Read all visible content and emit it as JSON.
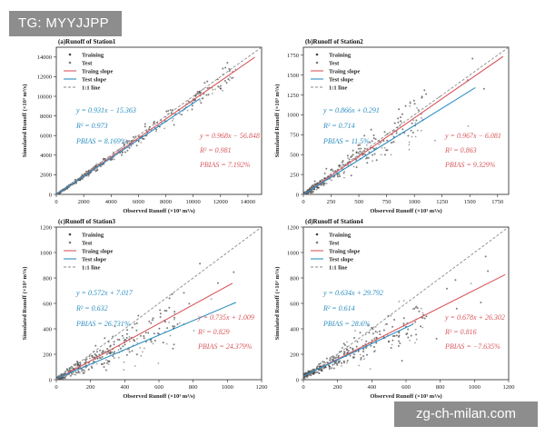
{
  "watermark_top": "TG: MYYJJPP",
  "watermark_bottom": "zg-ch-milan.com",
  "colors": {
    "training": "#d9585e",
    "test": "#2e8fc2",
    "one_to_one": "#8a8a8a",
    "points": "#444444"
  },
  "chart_data": [
    {
      "type": "scatter",
      "title": "(a)Runoff of Station1",
      "xlabel": "Observed Runoff (×10³ m³/s)",
      "ylabel": "Simulated Runoff (×10³ m³/s)",
      "xlim": [
        0,
        15000
      ],
      "ylim": [
        0,
        15000
      ],
      "xticks": [
        0,
        2000,
        4000,
        6000,
        8000,
        10000,
        12000,
        14000
      ],
      "yticks": [
        0,
        2000,
        4000,
        6000,
        8000,
        10000,
        12000,
        14000
      ],
      "legend": [
        "Training",
        "Test",
        "Traing slope",
        "Test slope",
        "1:1 line"
      ],
      "legend_position": "top-left",
      "train_fit": {
        "slope": 0.968,
        "intercept": -56.848,
        "xmax": 14500
      },
      "test_fit": {
        "slope": 0.931,
        "intercept": -15.363,
        "xmax": 10500
      },
      "test_annot": [
        "y = 0.931x − 15.363",
        "R² = 0.973",
        "PBIAS = 8.169%"
      ],
      "train_annot": [
        "y = 0.968x − 56.848",
        "R² = 0.981",
        "PBIAS = 7.192%"
      ]
    },
    {
      "type": "scatter",
      "title": "(b)Runoff of Station2",
      "xlabel": "Observed Runoff (×10³ m³/s)",
      "ylabel": "Simulated Runoff (×10³ m³/s)",
      "xlim": [
        0,
        1850
      ],
      "ylim": [
        0,
        1850
      ],
      "xticks": [
        0,
        250,
        500,
        750,
        1000,
        1250,
        1500,
        1750
      ],
      "yticks": [
        0,
        250,
        500,
        750,
        1000,
        1250,
        1500,
        1750
      ],
      "legend": [
        "Training",
        "Test",
        "Traing slope",
        "Test slope",
        "1:1 line"
      ],
      "legend_position": "top-left",
      "train_fit": {
        "slope": 0.967,
        "intercept": -6.081,
        "xmax": 1800
      },
      "test_fit": {
        "slope": 0.866,
        "intercept": 0.291,
        "xmax": 1550
      },
      "test_annot": [
        "y = 0.866x + 0.291",
        "R² = 0.714",
        "PBIAS = 11.5%"
      ],
      "train_annot": [
        "y = 0.967x − 6.081",
        "R² = 0.863",
        "PBIAS = 9.329%"
      ]
    },
    {
      "type": "scatter",
      "title": "(c)Runoff of Station3",
      "xlabel": "Observed Runoff (×10³ m³/s)",
      "ylabel": "Simulated Runoff (×10³ m³/s)",
      "xlim": [
        0,
        1200
      ],
      "ylim": [
        0,
        1200
      ],
      "xticks": [
        0,
        200,
        400,
        600,
        800,
        1000,
        1200
      ],
      "yticks": [
        0,
        200,
        400,
        600,
        800,
        1000,
        1200
      ],
      "legend": [
        "Training",
        "Test",
        "Traing slope",
        "Test slope",
        "1:1 line"
      ],
      "legend_position": "top-left",
      "train_fit": {
        "slope": 0.735,
        "intercept": 1.009,
        "xmax": 1030
      },
      "test_fit": {
        "slope": 0.572,
        "intercept": 7.017,
        "xmax": 1050
      },
      "test_annot": [
        "y = 0.572x + 7.017",
        "R² = 0.632",
        "PBIAS = 26.731%"
      ],
      "train_annot": [
        "y = 0.735x + 1.009",
        "R² = 0.829",
        "PBIAS = 24.379%"
      ]
    },
    {
      "type": "scatter",
      "title": "(d)Runoff of Station4",
      "xlabel": "Observed Runoff (×10³ m³/s)",
      "ylabel": "Simulated Runoff (×10³ m³/s)",
      "xlim": [
        0,
        1200
      ],
      "ylim": [
        0,
        1200
      ],
      "xticks": [
        0,
        200,
        400,
        600,
        800,
        1000,
        1200
      ],
      "yticks": [
        0,
        200,
        400,
        600,
        800,
        1000,
        1200
      ],
      "legend": [
        "Training",
        "Test",
        "Traing slope",
        "Test slope",
        "1:1 line"
      ],
      "legend_position": "top-left",
      "train_fit": {
        "slope": 0.678,
        "intercept": 26.302,
        "xmax": 1180
      },
      "test_fit": {
        "slope": 0.634,
        "intercept": 29.792,
        "xmax": 640
      },
      "test_annot": [
        "y = 0.634x + 29.792",
        "R² = 0.614",
        "PBIAS = 28.6%"
      ],
      "train_annot": [
        "y = 0.678x + 26.302",
        "R² = 0.816",
        "PBIAS = −7.635%"
      ]
    }
  ]
}
